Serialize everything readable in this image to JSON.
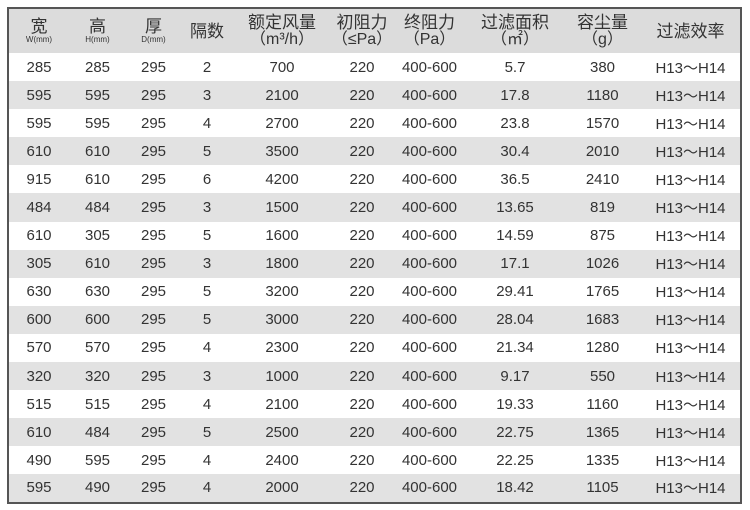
{
  "table": {
    "headers": [
      {
        "label": "宽",
        "sub": "W(mm)"
      },
      {
        "label": "高",
        "sub": "H(mm)"
      },
      {
        "label": "厚",
        "sub": "D(mm)"
      },
      {
        "label": "隔数",
        "sub": ""
      },
      {
        "label": "额定风量",
        "unit": "（m³/h）"
      },
      {
        "label": "初阻力",
        "unit": "（≤Pa）"
      },
      {
        "label": "终阻力",
        "unit": "（Pa）"
      },
      {
        "label": "过滤面积",
        "unit": "（㎡）"
      },
      {
        "label": "容尘量",
        "unit": "（g）"
      },
      {
        "label": "过滤效率",
        "sub": ""
      }
    ],
    "rows": [
      [
        "285",
        "285",
        "295",
        "2",
        "700",
        "220",
        "400-600",
        "5.7",
        "380",
        "H13～H14"
      ],
      [
        "595",
        "595",
        "295",
        "3",
        "2100",
        "220",
        "400-600",
        "17.8",
        "1180",
        "H13～H14"
      ],
      [
        "595",
        "595",
        "295",
        "4",
        "2700",
        "220",
        "400-600",
        "23.8",
        "1570",
        "H13～H14"
      ],
      [
        "610",
        "610",
        "295",
        "5",
        "3500",
        "220",
        "400-600",
        "30.4",
        "2010",
        "H13～H14"
      ],
      [
        "915",
        "610",
        "295",
        "6",
        "4200",
        "220",
        "400-600",
        "36.5",
        "2410",
        "H13～H14"
      ],
      [
        "484",
        "484",
        "295",
        "3",
        "1500",
        "220",
        "400-600",
        "13.65",
        "819",
        "H13～H14"
      ],
      [
        "610",
        "305",
        "295",
        "5",
        "1600",
        "220",
        "400-600",
        "14.59",
        "875",
        "H13～H14"
      ],
      [
        "305",
        "610",
        "295",
        "3",
        "1800",
        "220",
        "400-600",
        "17.1",
        "1026",
        "H13～H14"
      ],
      [
        "630",
        "630",
        "295",
        "5",
        "3200",
        "220",
        "400-600",
        "29.41",
        "1765",
        "H13～H14"
      ],
      [
        "600",
        "600",
        "295",
        "5",
        "3000",
        "220",
        "400-600",
        "28.04",
        "1683",
        "H13～H14"
      ],
      [
        "570",
        "570",
        "295",
        "4",
        "2300",
        "220",
        "400-600",
        "21.34",
        "1280",
        "H13～H14"
      ],
      [
        "320",
        "320",
        "295",
        "3",
        "1000",
        "220",
        "400-600",
        "9.17",
        "550",
        "H13～H14"
      ],
      [
        "515",
        "515",
        "295",
        "4",
        "2100",
        "220",
        "400-600",
        "19.33",
        "1160",
        "H13～H14"
      ],
      [
        "610",
        "484",
        "295",
        "5",
        "2500",
        "220",
        "400-600",
        "22.75",
        "1365",
        "H13～H14"
      ],
      [
        "490",
        "595",
        "295",
        "4",
        "2400",
        "220",
        "400-600",
        "22.25",
        "1335",
        "H13～H14"
      ],
      [
        "595",
        "490",
        "295",
        "4",
        "2000",
        "220",
        "400-600",
        "18.42",
        "1105",
        "H13～H14"
      ]
    ]
  }
}
